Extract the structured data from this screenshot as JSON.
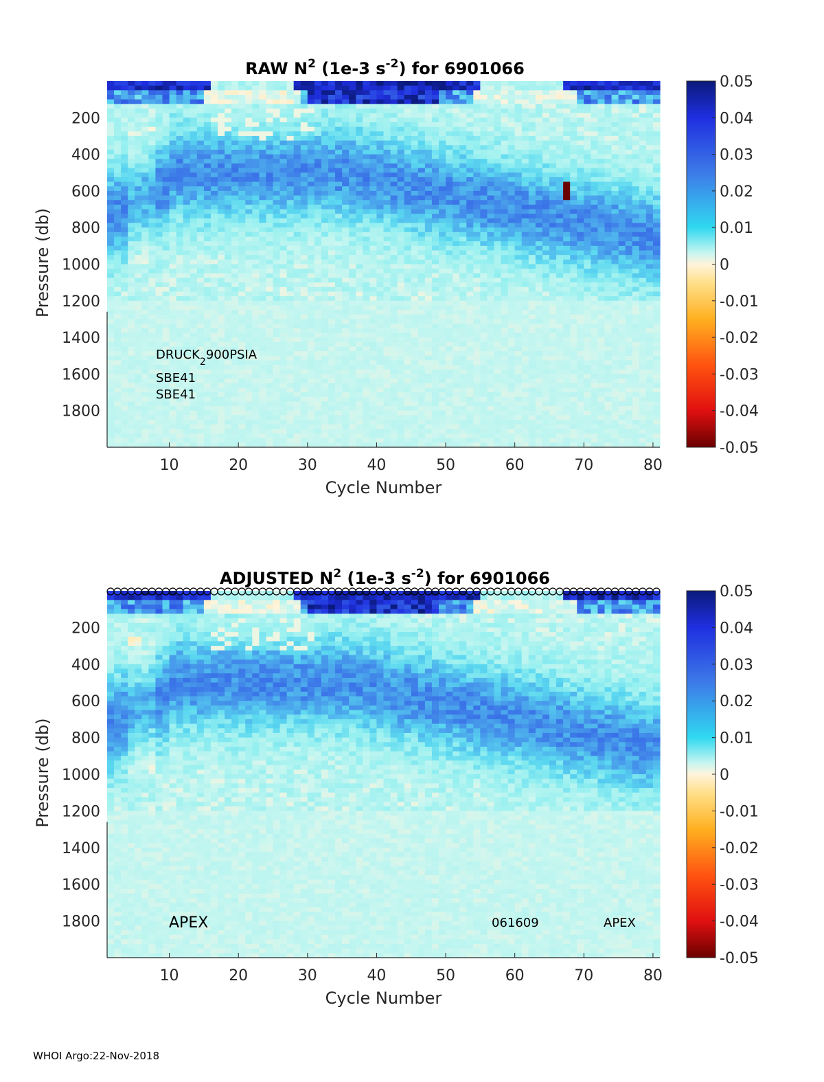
{
  "footer": "WHOI Argo:22-Nov-2018",
  "chart_data": [
    {
      "type": "heatmap",
      "title_main": "RAW N",
      "title_sup": "2",
      "title_mid": " (1e-3 s",
      "title_sup2": "-2",
      "title_end": ") for 6901066",
      "xlabel": "Cycle Number",
      "ylabel": "Pressure (db)",
      "xlim": [
        1,
        80
      ],
      "ylim": [
        2000,
        0
      ],
      "x_ticks": [
        10,
        20,
        30,
        40,
        50,
        60,
        70,
        80
      ],
      "y_ticks": [
        200,
        400,
        600,
        800,
        1000,
        1200,
        1400,
        1600,
        1800
      ],
      "colorbar": {
        "range": [
          -0.05,
          0.05
        ],
        "ticks": [
          "0.05",
          "0.04",
          "0.03",
          "0.02",
          "0.01",
          "0",
          "-0.01",
          "-0.02",
          "-0.03",
          "-0.04",
          "-0.05"
        ]
      },
      "annotations": [
        {
          "text": "DRUCK",
          "sub": "2",
          "rest": "900PSIA"
        },
        {
          "text": "SBE41"
        },
        {
          "text": "SBE41"
        }
      ],
      "notable": {
        "cycle": 67,
        "pressure_range": [
          550,
          650
        ],
        "value": -0.05
      }
    },
    {
      "type": "heatmap",
      "title_main": "ADJUSTED N",
      "title_sup": "2",
      "title_mid": " (1e-3 s",
      "title_sup2": "-2",
      "title_end": ") for 6901066",
      "xlabel": "Cycle Number",
      "ylabel": "Pressure (db)",
      "xlim": [
        1,
        80
      ],
      "ylim": [
        2000,
        0
      ],
      "x_ticks": [
        10,
        20,
        30,
        40,
        50,
        60,
        70,
        80
      ],
      "y_ticks": [
        200,
        400,
        600,
        800,
        1000,
        1200,
        1400,
        1600,
        1800
      ],
      "colorbar": {
        "range": [
          -0.05,
          0.05
        ],
        "ticks": [
          "0.05",
          "0.04",
          "0.03",
          "0.02",
          "0.01",
          "0",
          "-0.01",
          "-0.02",
          "-0.03",
          "-0.04",
          "-0.05"
        ]
      },
      "annotations": [
        {
          "text": "APEX"
        },
        {
          "text": "061609"
        },
        {
          "text": "APEX"
        }
      ],
      "markers": "circles at top of every cycle"
    }
  ]
}
